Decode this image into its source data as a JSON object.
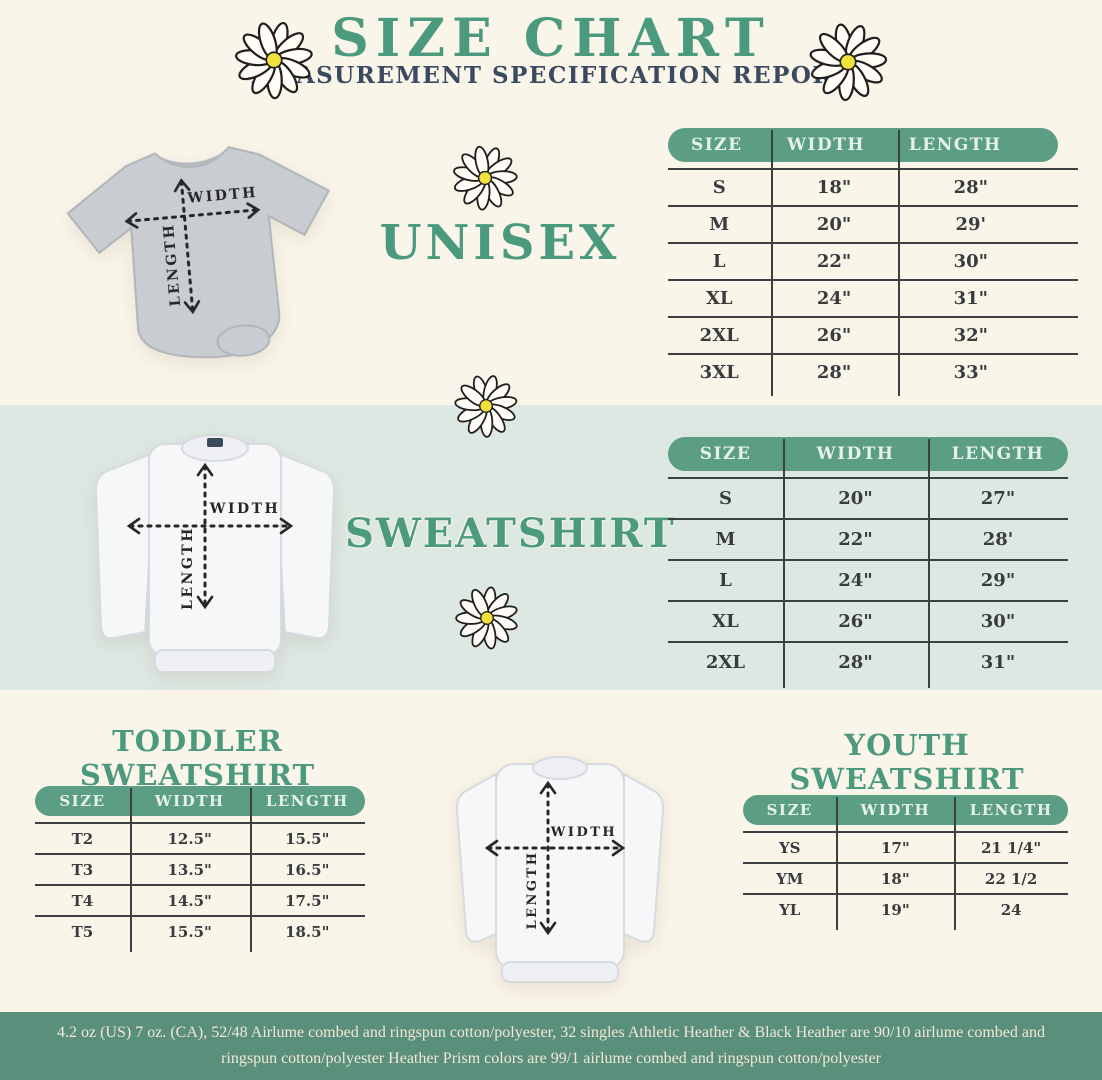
{
  "header": {
    "title": "SIZE CHART",
    "subtitle": "MEASUREMENT SPECIFICATION REPORT"
  },
  "diagram_labels": {
    "width": "WIDTH",
    "length": "LENGTH"
  },
  "tables": {
    "unisex": {
      "title": "UNISEX",
      "columns": [
        "SIZE",
        "WIDTH",
        "LENGTH"
      ],
      "rows": [
        [
          "S",
          "18\"",
          "28\""
        ],
        [
          "M",
          "20\"",
          "29'"
        ],
        [
          "L",
          "22\"",
          "30\""
        ],
        [
          "XL",
          "24\"",
          "31\""
        ],
        [
          "2XL",
          "26\"",
          "32\""
        ],
        [
          "3XL",
          "28\"",
          "33\""
        ]
      ]
    },
    "sweatshirt": {
      "title": "SWEATSHIRT",
      "columns": [
        "SIZE",
        "WIDTH",
        "LENGTH"
      ],
      "rows": [
        [
          "S",
          "20\"",
          "27\""
        ],
        [
          "M",
          "22\"",
          "28'"
        ],
        [
          "L",
          "24\"",
          "29\""
        ],
        [
          "XL",
          "26\"",
          "30\""
        ],
        [
          "2XL",
          "28\"",
          "31\""
        ]
      ]
    },
    "toddler": {
      "title": "TODDLER SWEATSHIRT",
      "columns": [
        "SIZE",
        "WIDTH",
        "LENGTH"
      ],
      "rows": [
        [
          "T2",
          "12.5\"",
          "15.5\""
        ],
        [
          "T3",
          "13.5\"",
          "16.5\""
        ],
        [
          "T4",
          "14.5\"",
          "17.5\""
        ],
        [
          "T5",
          "15.5\"",
          "18.5\""
        ]
      ]
    },
    "youth": {
      "title": "YOUTH SWEATSHIRT",
      "columns": [
        "SIZE",
        "WIDTH",
        "LENGTH"
      ],
      "rows": [
        [
          "YS",
          "17\"",
          "21 1/4\""
        ],
        [
          "YM",
          "18\"",
          "22 1/2"
        ],
        [
          "YL",
          "19\"",
          "24"
        ]
      ]
    }
  },
  "footer": {
    "line1": "4.2 oz (US) 7 oz. (CA), 52/48 Airlume combed and ringspun cotton/polyester, 32 singles Athletic Heather & Black Heather are 90/10 airlume combed and",
    "line2": "ringspun cotton/polyester Heather Prism colors are 99/1 airlume combed and ringspun cotton/polyester"
  },
  "colors": {
    "accent_green": "#4c9a7e",
    "header_pill_green": "#5c9e84",
    "footer_green": "#5a8f7c",
    "navy_text": "#3b4a61",
    "cream_background": "#faf5e9",
    "mid_band_background": "#dee8e3",
    "daisy_center_yellow": "#f1e13c"
  }
}
